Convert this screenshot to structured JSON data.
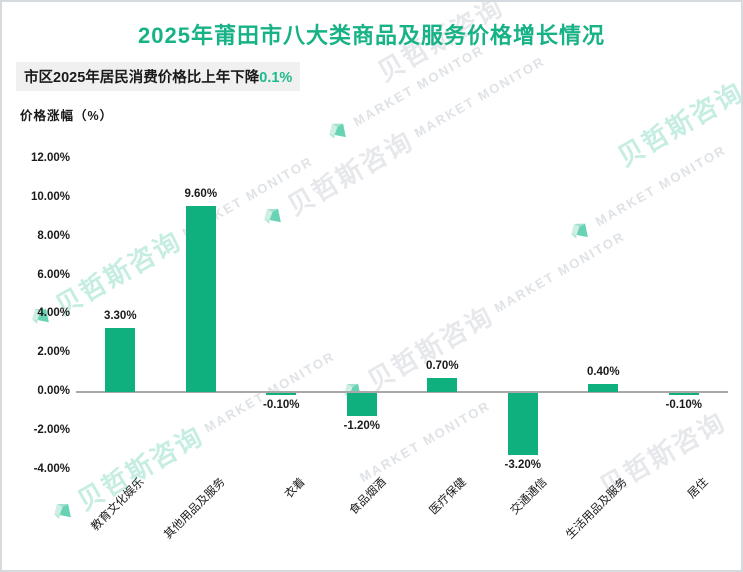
{
  "page": {
    "title": "2025年莆田市八大类商品及服务价格增长情况"
  },
  "subtitle": {
    "text": "市区2025年居民消费价格比上年下降",
    "highlight": "0.1%"
  },
  "axis_title": "价格涨幅（%）",
  "watermark": {
    "cn": "贝哲斯咨询",
    "en": "MARKET MONITOR",
    "logo": "gem-diamond-icon"
  },
  "colors": {
    "bar": "#10b07e",
    "title_text": "#17b286",
    "highlight_text": "#1eba8d",
    "subtitle_bg": "#f0f0f0",
    "zero_line": "#a8a8a8",
    "watermark_teal": "#2fbf96"
  },
  "chart_data": {
    "type": "bar",
    "categories": [
      "教育文化娱乐",
      "其他用品及服务",
      "衣着",
      "食品烟酒",
      "医疗保健",
      "交通通信",
      "生活用品及服务",
      "居住"
    ],
    "values": [
      3.3,
      9.6,
      -0.1,
      -1.2,
      0.7,
      -3.2,
      0.4,
      -0.1
    ],
    "labels": [
      "3.30%",
      "9.60%",
      "-0.10%",
      "-1.20%",
      "0.70%",
      "-3.20%",
      "0.40%",
      "-0.10%"
    ],
    "title": "2025年莆田市八大类商品及服务价格增长情况",
    "xlabel": "",
    "ylabel": "价格涨幅（%）",
    "ylim": [
      -4,
      12
    ],
    "yticks": [
      12,
      10,
      8,
      6,
      4,
      2,
      0,
      -2,
      -4
    ],
    "ytick_labels": [
      "12.00%",
      "10.00%",
      "8.00%",
      "6.00%",
      "4.00%",
      "2.00%",
      "0.00%",
      "-2.00%",
      "-4.00%"
    ],
    "grid": false,
    "legend": false
  }
}
